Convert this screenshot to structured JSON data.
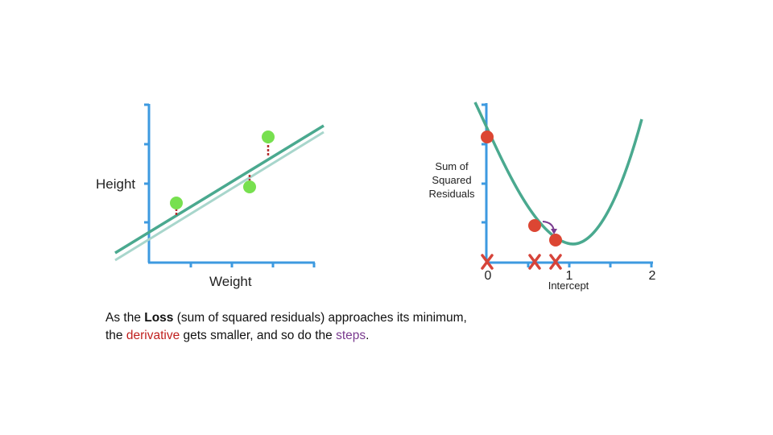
{
  "left_plot": {
    "ylabel": "Height",
    "xlabel": "Weight"
  },
  "right_plot": {
    "ylabel_lines": [
      "Sum of",
      "Squared",
      "Residuals"
    ],
    "xlabel": "Intercept",
    "x_ticks": [
      "0",
      "1",
      "2"
    ]
  },
  "caption": {
    "line1_a": "As the ",
    "line1_loss": "Loss",
    "line1_b": " (sum of squared residuals) approaches its minimum,",
    "line2_a": "the ",
    "line2_derivative": "derivative",
    "line2_b": " gets smaller, and so do the ",
    "line2_steps": "steps",
    "line2_c": "."
  },
  "colors": {
    "axis": "#3d9ae0",
    "fit_line": "#4aa98f",
    "fit_line_light": "#a8d6cc",
    "data_point": "#77e04f",
    "residual": "#b33030",
    "loss_point": "#dc4633",
    "step_marker": "#d6443a",
    "step_arrow": "#7a3b8f",
    "derivative_text": "#c0201e",
    "steps_text": "#7a3b8f"
  }
}
